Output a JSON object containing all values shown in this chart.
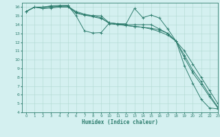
{
  "xlabel": "Humidex (Indice chaleur)",
  "background_color": "#d4f0f0",
  "grid_color": "#b0d8d0",
  "line_color": "#2e7d6e",
  "xlim": [
    -0.5,
    23
  ],
  "ylim": [
    4,
    16.5
  ],
  "xticks": [
    0,
    1,
    2,
    3,
    4,
    5,
    6,
    7,
    8,
    9,
    10,
    11,
    12,
    13,
    14,
    15,
    16,
    17,
    18,
    19,
    20,
    21,
    22,
    23
  ],
  "yticks": [
    4,
    5,
    6,
    7,
    8,
    9,
    10,
    11,
    12,
    13,
    14,
    15,
    16
  ],
  "lines": [
    {
      "x": [
        0,
        1,
        2,
        3,
        4,
        5,
        6,
        7,
        8,
        9,
        10,
        11,
        12,
        13,
        14,
        15,
        16,
        17,
        18,
        19,
        20,
        21,
        22,
        23
      ],
      "y": [
        15.5,
        16.0,
        16.0,
        16.15,
        16.2,
        16.2,
        15.0,
        13.3,
        13.05,
        13.1,
        14.2,
        14.1,
        14.1,
        15.85,
        14.8,
        15.1,
        14.75,
        13.5,
        12.1,
        9.3,
        7.3,
        5.5,
        4.5,
        4.4
      ]
    },
    {
      "x": [
        0,
        1,
        2,
        3,
        4,
        5,
        6,
        7,
        8,
        9,
        10,
        11,
        12,
        13,
        14,
        15,
        16,
        17,
        18,
        19,
        20,
        21,
        22,
        23
      ],
      "y": [
        15.5,
        16.0,
        16.0,
        16.1,
        16.1,
        16.15,
        15.3,
        15.1,
        15.05,
        15.0,
        14.2,
        14.1,
        14.0,
        14.0,
        14.0,
        14.0,
        13.5,
        13.0,
        12.1,
        11.0,
        9.5,
        8.0,
        6.5,
        5.0
      ]
    },
    {
      "x": [
        0,
        1,
        2,
        3,
        4,
        5,
        6,
        7,
        8,
        9,
        10,
        11,
        12,
        13,
        14,
        15,
        16,
        17,
        18,
        19,
        20,
        21,
        22,
        23
      ],
      "y": [
        15.5,
        16.0,
        15.85,
        16.0,
        16.1,
        16.1,
        15.5,
        15.2,
        15.0,
        14.8,
        14.1,
        14.0,
        13.9,
        13.8,
        13.7,
        13.5,
        13.2,
        12.8,
        12.1,
        10.5,
        8.8,
        7.5,
        6.0,
        4.6
      ]
    },
    {
      "x": [
        0,
        1,
        2,
        3,
        4,
        5,
        6,
        7,
        8,
        9,
        10,
        11,
        12,
        13,
        14,
        15,
        16,
        17,
        18,
        19,
        20,
        21,
        22,
        23
      ],
      "y": [
        15.5,
        16.0,
        15.85,
        15.9,
        16.0,
        16.0,
        15.4,
        15.1,
        14.9,
        14.7,
        14.2,
        14.1,
        13.9,
        13.8,
        13.7,
        13.6,
        13.4,
        13.0,
        12.1,
        10.2,
        8.5,
        7.2,
        5.8,
        4.5
      ]
    }
  ]
}
